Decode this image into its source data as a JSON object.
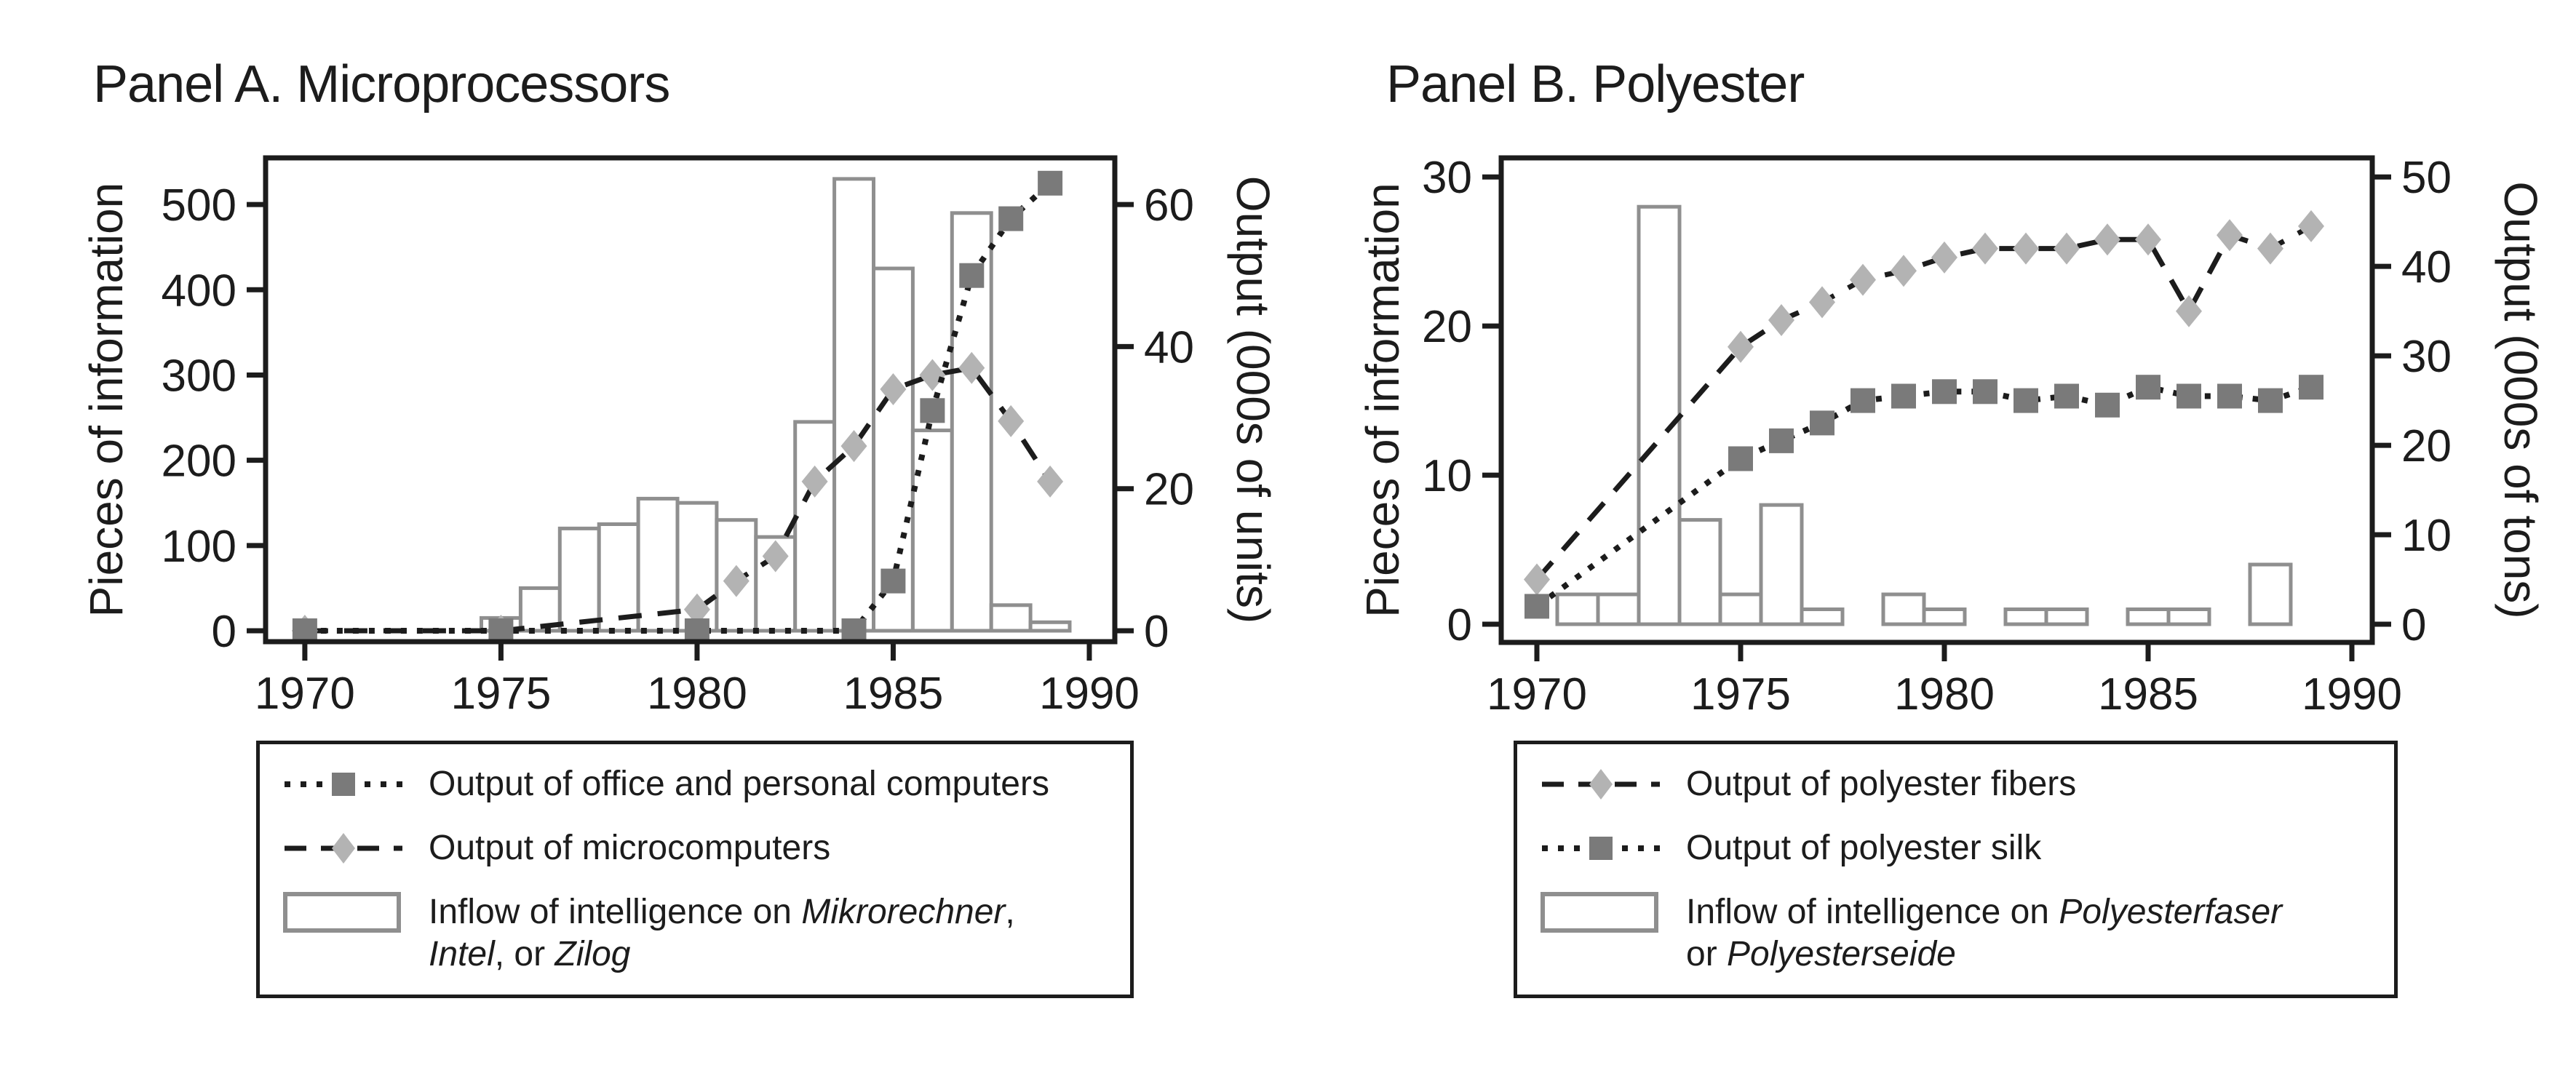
{
  "figure": {
    "background": "#ffffff",
    "text_color": "#1c1c1c",
    "bar_outline_color": "#8f8f8f",
    "diamond_marker_color": "#b3b3b3",
    "square_marker_color": "#7a7a7a",
    "line_color": "#1c1c1c"
  },
  "panels": [
    {
      "title": "Panel A. Microprocessors",
      "legend": {
        "items": [
          {
            "sample": "dotted-square",
            "parts": [
              {
                "text": "Output of office and personal computers"
              }
            ]
          },
          {
            "sample": "dashed-diamond",
            "parts": [
              {
                "text": "Output of microcomputers"
              }
            ]
          },
          {
            "sample": "bar",
            "parts": [
              {
                "text": "Inflow of intelligence on "
              },
              {
                "text": "Mikrorechner",
                "italic": true
              },
              {
                "text": ","
              },
              {
                "break": true
              },
              {
                "text": "Intel",
                "italic": true
              },
              {
                "text": ", or "
              },
              {
                "text": "Zilog",
                "italic": true
              }
            ]
          }
        ]
      }
    },
    {
      "title": "Panel B. Polyester",
      "legend": {
        "items": [
          {
            "sample": "dashed-diamond",
            "parts": [
              {
                "text": "Output of polyester fibers"
              }
            ]
          },
          {
            "sample": "dotted-square",
            "parts": [
              {
                "text": "Output of polyester silk"
              }
            ]
          },
          {
            "sample": "bar",
            "parts": [
              {
                "text": "Inflow of intelligence on "
              },
              {
                "text": "Polyesterfaser",
                "italic": true
              },
              {
                "break": true
              },
              {
                "text": "or "
              },
              {
                "text": "Polyesterseide",
                "italic": true
              }
            ]
          }
        ]
      }
    }
  ],
  "chart_data": [
    {
      "type": "bar+line",
      "title": "Panel A. Microprocessors",
      "xlabel": "",
      "ylabel_left": "Pieces of information",
      "ylabel_right": "Output (000s of units)",
      "x_ticks": [
        1970,
        1975,
        1980,
        1985,
        1990
      ],
      "left_ticks": [
        0,
        100,
        200,
        300,
        400,
        500
      ],
      "right_ticks": [
        0,
        20,
        40,
        60
      ],
      "x_range": [
        1969.0,
        1990.65
      ],
      "left_range": [
        -12.8,
        554.7
      ],
      "legend_position": "below",
      "grid": false,
      "bars": {
        "name": "Inflow of intelligence on Mikrorechner, Intel, or Zilog",
        "axis": "left",
        "years": [
          1975,
          1976,
          1977,
          1978,
          1979,
          1980,
          1981,
          1982,
          1983,
          1984,
          1985,
          1986,
          1987,
          1988,
          1989
        ],
        "values": [
          15,
          50,
          120,
          125,
          155,
          150,
          130,
          110,
          245,
          530,
          425,
          235,
          490,
          30,
          10
        ]
      },
      "series": [
        {
          "name": "Output of microcomputers",
          "axis": "right",
          "style": "dashed",
          "marker": "diamond",
          "x": [
            1970,
            1975,
            1980,
            1981,
            1982,
            1983,
            1984,
            1985,
            1986,
            1987,
            1988,
            1989
          ],
          "y": [
            0,
            0,
            3,
            7,
            10.5,
            21,
            26,
            34,
            36,
            37,
            29.5,
            21
          ]
        },
        {
          "name": "Output of office and personal computers",
          "axis": "right",
          "style": "dotted",
          "marker": "square",
          "x": [
            1970,
            1975,
            1980,
            1984,
            1985,
            1986,
            1987,
            1988,
            1989
          ],
          "y": [
            0,
            0,
            0,
            0,
            7,
            31,
            50,
            58,
            63
          ]
        }
      ]
    },
    {
      "type": "bar+line",
      "title": "Panel B. Polyester",
      "xlabel": "",
      "ylabel_left": "Pieces of information",
      "ylabel_right": "Output (000s of tons)",
      "x_ticks": [
        1970,
        1975,
        1980,
        1985,
        1990
      ],
      "left_ticks": [
        0,
        10,
        20,
        30
      ],
      "right_ticks": [
        0,
        10,
        20,
        30,
        40,
        50
      ],
      "x_range": [
        1969.125,
        1990.5
      ],
      "left_range": [
        -1.22,
        31.28
      ],
      "legend_position": "below",
      "grid": false,
      "bars": {
        "name": "Inflow of intelligence on Polyesterfaser or Polyesterseide",
        "axis": "left",
        "years": [
          1971,
          1972,
          1973,
          1974,
          1975,
          1976,
          1977,
          1979,
          1980,
          1982,
          1983,
          1985,
          1986,
          1988
        ],
        "values": [
          2,
          2,
          28,
          7,
          2,
          8,
          1,
          2,
          1,
          1,
          1,
          1,
          1,
          4
        ]
      },
      "series": [
        {
          "name": "Output of polyester fibers",
          "axis": "right",
          "style": "dashed",
          "marker": "diamond",
          "x": [
            1970,
            1975,
            1976,
            1977,
            1978,
            1979,
            1980,
            1981,
            1982,
            1983,
            1984,
            1985,
            1986,
            1987,
            1988,
            1989
          ],
          "y": [
            5,
            31,
            34,
            36,
            38.5,
            39.5,
            41,
            42,
            42,
            42,
            43,
            43,
            35,
            43.5,
            42,
            44.5
          ]
        },
        {
          "name": "Output of polyester silk",
          "axis": "right",
          "style": "dotted",
          "marker": "square",
          "x": [
            1970,
            1975,
            1976,
            1977,
            1978,
            1979,
            1980,
            1981,
            1982,
            1983,
            1984,
            1985,
            1986,
            1987,
            1988,
            1989
          ],
          "y": [
            2,
            18.5,
            20.5,
            22.5,
            25,
            25.5,
            26,
            26,
            25,
            25.5,
            24.5,
            26.5,
            25.5,
            25.5,
            25,
            26.5
          ]
        }
      ]
    }
  ]
}
